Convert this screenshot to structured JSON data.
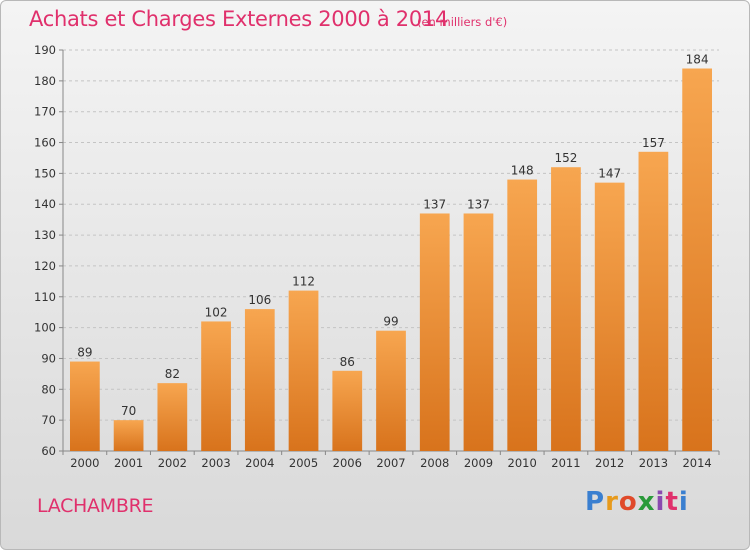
{
  "title": "Achats et Charges Externes 2000 à 2014",
  "subtitle": "(en milliers d'€)",
  "commune": "LACHAMBRE",
  "logo": {
    "letters": [
      "P",
      "r",
      "o",
      "x",
      "i",
      "t",
      "i"
    ],
    "colors": [
      "#3a7fd0",
      "#e79a1c",
      "#e04a2a",
      "#2a9a3a",
      "#8a4ab0",
      "#e0306c",
      "#3a7fd0"
    ]
  },
  "colors": {
    "bar_top": "#f7a650",
    "bar_bottom": "#d8731c",
    "grid": "#c4c4c4",
    "title": "#e0306c"
  },
  "chart_data": {
    "type": "bar",
    "title": "Achats et Charges Externes 2000 à 2014",
    "subtitle": "(en milliers d'€)",
    "categories": [
      "2000",
      "2001",
      "2002",
      "2003",
      "2004",
      "2005",
      "2006",
      "2007",
      "2008",
      "2009",
      "2010",
      "2011",
      "2012",
      "2013",
      "2014"
    ],
    "values": [
      89,
      70,
      82,
      102,
      106,
      112,
      86,
      99,
      137,
      137,
      148,
      152,
      147,
      157,
      184
    ],
    "ylim": [
      60,
      190
    ],
    "yticks": [
      60,
      70,
      80,
      90,
      100,
      110,
      120,
      130,
      140,
      150,
      160,
      170,
      180,
      190
    ],
    "grid": true,
    "xlabel": "",
    "ylabel": ""
  }
}
